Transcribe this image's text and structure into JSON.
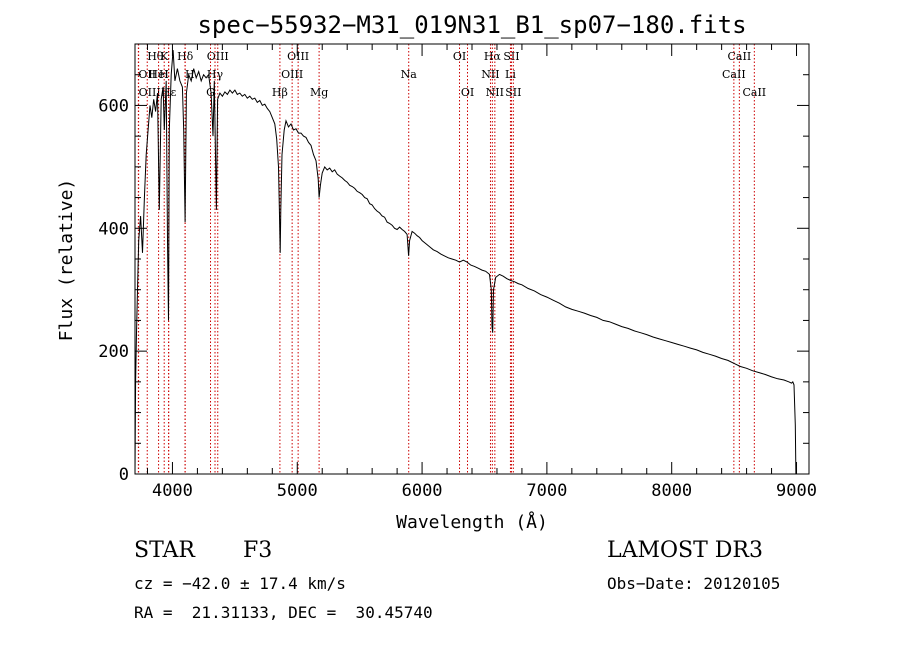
{
  "chart_data": {
    "type": "line",
    "title": "spec−55932−M31_019N31_B1_sp07−180.fits",
    "xlabel": "Wavelength (Å)",
    "ylabel": "Flux (relative)",
    "xlim": [
      3700,
      9100
    ],
    "ylim": [
      0,
      700
    ],
    "x_ticks": [
      4000,
      5000,
      6000,
      7000,
      8000,
      9000
    ],
    "y_ticks": [
      0,
      200,
      400,
      600
    ],
    "series": [
      {
        "name": "spectrum",
        "color": "#000000",
        "points": [
          [
            3700,
            0
          ],
          [
            3705,
            150
          ],
          [
            3712,
            230
          ],
          [
            3720,
            300
          ],
          [
            3730,
            380
          ],
          [
            3745,
            420
          ],
          [
            3760,
            360
          ],
          [
            3775,
            450
          ],
          [
            3790,
            520
          ],
          [
            3805,
            560
          ],
          [
            3820,
            600
          ],
          [
            3835,
            580
          ],
          [
            3850,
            610
          ],
          [
            3865,
            590
          ],
          [
            3880,
            620
          ],
          [
            3895,
            430
          ],
          [
            3910,
            610
          ],
          [
            3925,
            630
          ],
          [
            3935,
            560
          ],
          [
            3950,
            640
          ],
          [
            3960,
            380
          ],
          [
            3968,
            250
          ],
          [
            3975,
            560
          ],
          [
            3990,
            650
          ],
          [
            4005,
            690
          ],
          [
            4020,
            640
          ],
          [
            4040,
            660
          ],
          [
            4060,
            640
          ],
          [
            4080,
            630
          ],
          [
            4090,
            560
          ],
          [
            4101,
            410
          ],
          [
            4112,
            620
          ],
          [
            4130,
            650
          ],
          [
            4150,
            640
          ],
          [
            4170,
            660
          ],
          [
            4190,
            645
          ],
          [
            4210,
            655
          ],
          [
            4230,
            640
          ],
          [
            4250,
            650
          ],
          [
            4270,
            645
          ],
          [
            4290,
            650
          ],
          [
            4310,
            620
          ],
          [
            4325,
            550
          ],
          [
            4335,
            640
          ],
          [
            4345,
            520
          ],
          [
            4352,
            430
          ],
          [
            4362,
            610
          ],
          [
            4380,
            620
          ],
          [
            4400,
            615
          ],
          [
            4420,
            622
          ],
          [
            4440,
            618
          ],
          [
            4460,
            625
          ],
          [
            4480,
            620
          ],
          [
            4500,
            625
          ],
          [
            4520,
            618
          ],
          [
            4540,
            620
          ],
          [
            4560,
            615
          ],
          [
            4580,
            618
          ],
          [
            4600,
            612
          ],
          [
            4620,
            615
          ],
          [
            4640,
            610
          ],
          [
            4660,
            612
          ],
          [
            4680,
            605
          ],
          [
            4700,
            608
          ],
          [
            4720,
            600
          ],
          [
            4740,
            602
          ],
          [
            4760,
            595
          ],
          [
            4780,
            590
          ],
          [
            4800,
            580
          ],
          [
            4820,
            570
          ],
          [
            4835,
            545
          ],
          [
            4850,
            500
          ],
          [
            4858,
            420
          ],
          [
            4863,
            360
          ],
          [
            4868,
            430
          ],
          [
            4878,
            520
          ],
          [
            4895,
            560
          ],
          [
            4910,
            575
          ],
          [
            4930,
            565
          ],
          [
            4950,
            570
          ],
          [
            4970,
            560
          ],
          [
            4990,
            562
          ],
          [
            5010,
            555
          ],
          [
            5030,
            555
          ],
          [
            5050,
            550
          ],
          [
            5070,
            548
          ],
          [
            5090,
            540
          ],
          [
            5110,
            535
          ],
          [
            5130,
            520
          ],
          [
            5150,
            510
          ],
          [
            5168,
            480
          ],
          [
            5175,
            450
          ],
          [
            5185,
            470
          ],
          [
            5200,
            490
          ],
          [
            5220,
            500
          ],
          [
            5240,
            495
          ],
          [
            5260,
            498
          ],
          [
            5280,
            492
          ],
          [
            5300,
            495
          ],
          [
            5320,
            488
          ],
          [
            5340,
            485
          ],
          [
            5360,
            482
          ],
          [
            5380,
            478
          ],
          [
            5400,
            475
          ],
          [
            5420,
            470
          ],
          [
            5440,
            468
          ],
          [
            5460,
            465
          ],
          [
            5480,
            460
          ],
          [
            5500,
            458
          ],
          [
            5520,
            455
          ],
          [
            5540,
            450
          ],
          [
            5560,
            448
          ],
          [
            5580,
            440
          ],
          [
            5600,
            438
          ],
          [
            5620,
            432
          ],
          [
            5640,
            428
          ],
          [
            5660,
            425
          ],
          [
            5680,
            420
          ],
          [
            5700,
            418
          ],
          [
            5720,
            410
          ],
          [
            5740,
            408
          ],
          [
            5760,
            405
          ],
          [
            5780,
            400
          ],
          [
            5800,
            398
          ],
          [
            5820,
            402
          ],
          [
            5840,
            398
          ],
          [
            5860,
            395
          ],
          [
            5880,
            390
          ],
          [
            5892,
            355
          ],
          [
            5900,
            380
          ],
          [
            5920,
            395
          ],
          [
            5940,
            392
          ],
          [
            5960,
            388
          ],
          [
            5980,
            385
          ],
          [
            6000,
            380
          ],
          [
            6030,
            375
          ],
          [
            6060,
            370
          ],
          [
            6090,
            365
          ],
          [
            6120,
            362
          ],
          [
            6150,
            358
          ],
          [
            6180,
            355
          ],
          [
            6210,
            352
          ],
          [
            6240,
            350
          ],
          [
            6270,
            348
          ],
          [
            6300,
            345
          ],
          [
            6330,
            348
          ],
          [
            6360,
            345
          ],
          [
            6390,
            340
          ],
          [
            6420,
            338
          ],
          [
            6450,
            335
          ],
          [
            6480,
            332
          ],
          [
            6510,
            330
          ],
          [
            6540,
            325
          ],
          [
            6555,
            300
          ],
          [
            6560,
            240
          ],
          [
            6566,
            230
          ],
          [
            6572,
            300
          ],
          [
            6590,
            320
          ],
          [
            6620,
            325
          ],
          [
            6650,
            322
          ],
          [
            6680,
            318
          ],
          [
            6710,
            315
          ],
          [
            6740,
            313
          ],
          [
            6770,
            310
          ],
          [
            6800,
            308
          ],
          [
            6850,
            302
          ],
          [
            6900,
            298
          ],
          [
            6950,
            292
          ],
          [
            7000,
            288
          ],
          [
            7050,
            283
          ],
          [
            7100,
            278
          ],
          [
            7150,
            272
          ],
          [
            7200,
            268
          ],
          [
            7250,
            265
          ],
          [
            7300,
            262
          ],
          [
            7350,
            258
          ],
          [
            7400,
            255
          ],
          [
            7450,
            250
          ],
          [
            7500,
            248
          ],
          [
            7550,
            244
          ],
          [
            7600,
            240
          ],
          [
            7650,
            237
          ],
          [
            7700,
            233
          ],
          [
            7750,
            230
          ],
          [
            7800,
            227
          ],
          [
            7850,
            223
          ],
          [
            7900,
            220
          ],
          [
            7950,
            217
          ],
          [
            8000,
            214
          ],
          [
            8050,
            211
          ],
          [
            8100,
            208
          ],
          [
            8150,
            205
          ],
          [
            8200,
            202
          ],
          [
            8250,
            198
          ],
          [
            8300,
            195
          ],
          [
            8350,
            192
          ],
          [
            8400,
            188
          ],
          [
            8450,
            185
          ],
          [
            8500,
            180
          ],
          [
            8550,
            175
          ],
          [
            8600,
            172
          ],
          [
            8650,
            168
          ],
          [
            8700,
            165
          ],
          [
            8750,
            162
          ],
          [
            8800,
            158
          ],
          [
            8850,
            155
          ],
          [
            8900,
            153
          ],
          [
            8940,
            150
          ],
          [
            8960,
            148
          ],
          [
            8970,
            150
          ],
          [
            8980,
            145
          ],
          [
            8990,
            80
          ],
          [
            8995,
            0
          ]
        ]
      }
    ],
    "line_markers": [
      {
        "name": "Hθ",
        "wavelength": 3798,
        "row": 0,
        "side": "r"
      },
      {
        "name": "OII",
        "wavelength": 3727,
        "row": 1,
        "side": "r"
      },
      {
        "name": "OIII",
        "wavelength": 3729,
        "row": 2,
        "side": "r"
      },
      {
        "name": "K",
        "wavelength": 3934,
        "row": 0,
        "side": "c"
      },
      {
        "name": "HeI",
        "wavelength": 3889,
        "row": 1,
        "side": "c"
      },
      {
        "name": "Hε",
        "wavelength": 3970,
        "row": 2,
        "side": "c"
      },
      {
        "name": "Hδ",
        "wavelength": 4102,
        "row": 0,
        "side": "c"
      },
      {
        "name": "H",
        "wavelength": 3969,
        "row": 1,
        "side": "l"
      },
      {
        "name": "H",
        "wavelength": 4101,
        "row": 1,
        "side": "r"
      },
      {
        "name": "OIII",
        "wavelength": 4363,
        "row": 0,
        "side": "c"
      },
      {
        "name": "Hγ",
        "wavelength": 4341,
        "row": 1,
        "side": "c"
      },
      {
        "name": "G",
        "wavelength": 4305,
        "row": 2,
        "side": "c"
      },
      {
        "name": "OIII",
        "wavelength": 5007,
        "row": 0,
        "side": "c"
      },
      {
        "name": "OIII",
        "wavelength": 4959,
        "row": 1,
        "side": "c"
      },
      {
        "name": "Hβ",
        "wavelength": 4861,
        "row": 2,
        "side": "c"
      },
      {
        "name": "Mg",
        "wavelength": 5175,
        "row": 2,
        "side": "c"
      },
      {
        "name": "Na",
        "wavelength": 5893,
        "row": 1,
        "side": "c"
      },
      {
        "name": "OI",
        "wavelength": 6300,
        "row": 0,
        "side": "c"
      },
      {
        "name": "OI",
        "wavelength": 6364,
        "row": 2,
        "side": "c"
      },
      {
        "name": "Hα",
        "wavelength": 6563,
        "row": 0,
        "side": "c"
      },
      {
        "name": "NII",
        "wavelength": 6548,
        "row": 1,
        "side": "c"
      },
      {
        "name": "NII",
        "wavelength": 6583,
        "row": 2,
        "side": "c"
      },
      {
        "name": "SII",
        "wavelength": 6716,
        "row": 0,
        "side": "c"
      },
      {
        "name": "Li",
        "wavelength": 6708,
        "row": 1,
        "side": "c"
      },
      {
        "name": "SII",
        "wavelength": 6731,
        "row": 2,
        "side": "c"
      },
      {
        "name": "CaII",
        "wavelength": 8542,
        "row": 0,
        "side": "c"
      },
      {
        "name": "CaII",
        "wavelength": 8498,
        "row": 1,
        "side": "c"
      },
      {
        "name": "CaII",
        "wavelength": 8662,
        "row": 2,
        "side": "c"
      }
    ]
  },
  "info": {
    "class_label": "STAR",
    "subclass": "F3",
    "survey": "LAMOST DR3",
    "cz": "cz = −42.0 ± 17.4 km/s",
    "obs_date": "Obs−Date: 20120105",
    "coords": "RA =  21.31133, DEC =  30.45740"
  }
}
